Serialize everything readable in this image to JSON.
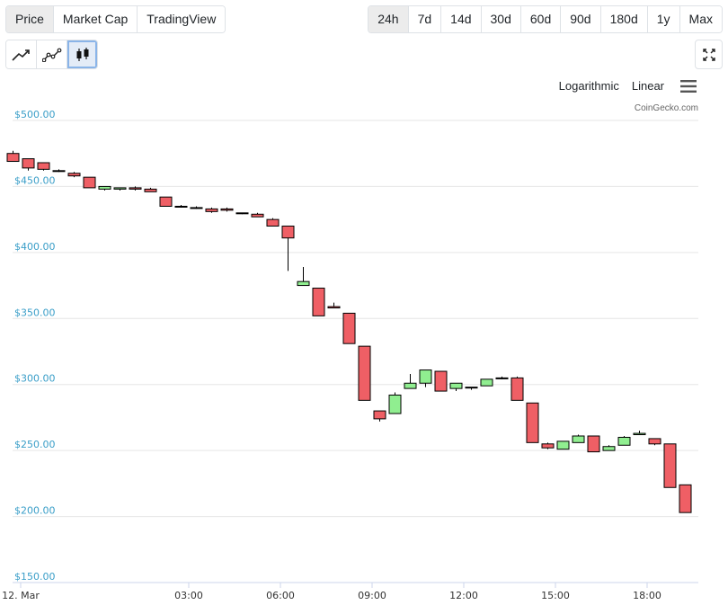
{
  "tabs": {
    "metric": [
      {
        "label": "Price",
        "active": true
      },
      {
        "label": "Market Cap",
        "active": false
      },
      {
        "label": "TradingView",
        "active": false
      }
    ],
    "range": [
      {
        "label": "24h",
        "active": true
      },
      {
        "label": "7d",
        "active": false
      },
      {
        "label": "14d",
        "active": false
      },
      {
        "label": "30d",
        "active": false
      },
      {
        "label": "60d",
        "active": false
      },
      {
        "label": "90d",
        "active": false
      },
      {
        "label": "180d",
        "active": false
      },
      {
        "label": "1y",
        "active": false
      },
      {
        "label": "Max",
        "active": false
      }
    ],
    "chart_types": [
      {
        "icon": "line-chart-icon",
        "active": false
      },
      {
        "icon": "line-points-chart-icon",
        "active": false
      },
      {
        "icon": "candlestick-chart-icon",
        "active": true
      }
    ]
  },
  "scale": {
    "logarithmic": "Logarithmic",
    "linear": "Linear"
  },
  "credit": "CoinGecko.com",
  "colors": {
    "up": "#90ee90",
    "down": "#ef5f65",
    "axis_label": "#3a9ec8",
    "grid": "#e6e6e6"
  },
  "chart_data": {
    "type": "candlestick",
    "y_ticks": [
      "$500.00",
      "$450.00",
      "$400.00",
      "$350.00",
      "$300.00",
      "$250.00",
      "$200.00",
      "$150.00"
    ],
    "y_tick_values": [
      500,
      450,
      400,
      350,
      300,
      250,
      200,
      150
    ],
    "ylim": [
      150,
      500
    ],
    "x_ticks": [
      {
        "label": "12. Mar",
        "hour": -2.5
      },
      {
        "label": "03:00",
        "hour": 3
      },
      {
        "label": "06:00",
        "hour": 6
      },
      {
        "label": "09:00",
        "hour": 9
      },
      {
        "label": "12:00",
        "hour": 12
      },
      {
        "label": "15:00",
        "hour": 15
      },
      {
        "label": "18:00",
        "hour": 18
      }
    ],
    "candles": [
      {
        "t": -2.75,
        "o": 475,
        "h": 477,
        "l": 469,
        "c": 469
      },
      {
        "t": -2.25,
        "o": 471,
        "h": 471,
        "l": 462,
        "c": 464
      },
      {
        "t": -1.75,
        "o": 468,
        "h": 468,
        "l": 462,
        "c": 463
      },
      {
        "t": -1.25,
        "o": 462,
        "h": 463,
        "l": 461,
        "c": 462
      },
      {
        "t": -0.75,
        "o": 460,
        "h": 461,
        "l": 457,
        "c": 458
      },
      {
        "t": -0.25,
        "o": 457,
        "h": 457,
        "l": 449,
        "c": 449
      },
      {
        "t": 0.25,
        "o": 448,
        "h": 450,
        "l": 447,
        "c": 450
      },
      {
        "t": 0.75,
        "o": 448,
        "h": 449,
        "l": 447,
        "c": 449
      },
      {
        "t": 1.25,
        "o": 449,
        "h": 450,
        "l": 447,
        "c": 448
      },
      {
        "t": 1.75,
        "o": 448,
        "h": 449,
        "l": 446,
        "c": 446
      },
      {
        "t": 2.25,
        "o": 442,
        "h": 442,
        "l": 435,
        "c": 435
      },
      {
        "t": 2.75,
        "o": 435,
        "h": 436,
        "l": 434,
        "c": 435
      },
      {
        "t": 3.25,
        "o": 434,
        "h": 435,
        "l": 433,
        "c": 434
      },
      {
        "t": 3.75,
        "o": 433,
        "h": 434,
        "l": 430,
        "c": 431
      },
      {
        "t": 4.25,
        "o": 433,
        "h": 434,
        "l": 431,
        "c": 432
      },
      {
        "t": 4.75,
        "o": 430,
        "h": 430,
        "l": 429,
        "c": 430
      },
      {
        "t": 5.25,
        "o": 429,
        "h": 430,
        "l": 427,
        "c": 427
      },
      {
        "t": 5.75,
        "o": 425,
        "h": 426,
        "l": 420,
        "c": 420
      },
      {
        "t": 6.25,
        "o": 420,
        "h": 420,
        "l": 386,
        "c": 411
      },
      {
        "t": 6.75,
        "o": 375,
        "h": 389,
        "l": 375,
        "c": 378
      },
      {
        "t": 7.25,
        "o": 373,
        "h": 373,
        "l": 352,
        "c": 352
      },
      {
        "t": 7.75,
        "o": 359,
        "h": 362,
        "l": 358,
        "c": 358
      },
      {
        "t": 8.25,
        "o": 354,
        "h": 354,
        "l": 331,
        "c": 331
      },
      {
        "t": 8.75,
        "o": 329,
        "h": 329,
        "l": 288,
        "c": 288
      },
      {
        "t": 9.25,
        "o": 280,
        "h": 280,
        "l": 272,
        "c": 274
      },
      {
        "t": 9.75,
        "o": 278,
        "h": 294,
        "l": 278,
        "c": 292
      },
      {
        "t": 10.25,
        "o": 297,
        "h": 308,
        "l": 297,
        "c": 301
      },
      {
        "t": 10.75,
        "o": 301,
        "h": 311,
        "l": 298,
        "c": 311
      },
      {
        "t": 11.25,
        "o": 310,
        "h": 310,
        "l": 295,
        "c": 295
      },
      {
        "t": 11.75,
        "o": 297,
        "h": 301,
        "l": 295,
        "c": 301
      },
      {
        "t": 12.25,
        "o": 298,
        "h": 298,
        "l": 296,
        "c": 298
      },
      {
        "t": 12.75,
        "o": 299,
        "h": 304,
        "l": 299,
        "c": 304
      },
      {
        "t": 13.25,
        "o": 305,
        "h": 306,
        "l": 304,
        "c": 305
      },
      {
        "t": 13.75,
        "o": 305,
        "h": 306,
        "l": 288,
        "c": 288
      },
      {
        "t": 14.25,
        "o": 286,
        "h": 286,
        "l": 256,
        "c": 256
      },
      {
        "t": 14.75,
        "o": 255,
        "h": 256,
        "l": 251,
        "c": 252
      },
      {
        "t": 15.25,
        "o": 251,
        "h": 257,
        "l": 251,
        "c": 257
      },
      {
        "t": 15.75,
        "o": 256,
        "h": 262,
        "l": 256,
        "c": 261
      },
      {
        "t": 16.25,
        "o": 261,
        "h": 261,
        "l": 249,
        "c": 249
      },
      {
        "t": 16.75,
        "o": 250,
        "h": 254,
        "l": 250,
        "c": 253
      },
      {
        "t": 17.25,
        "o": 254,
        "h": 261,
        "l": 254,
        "c": 260
      },
      {
        "t": 17.75,
        "o": 262,
        "h": 265,
        "l": 262,
        "c": 263
      },
      {
        "t": 18.25,
        "o": 259,
        "h": 259,
        "l": 254,
        "c": 255
      },
      {
        "t": 18.75,
        "o": 255,
        "h": 255,
        "l": 222,
        "c": 222
      },
      {
        "t": 19.25,
        "o": 224,
        "h": 224,
        "l": 203,
        "c": 203
      }
    ]
  }
}
